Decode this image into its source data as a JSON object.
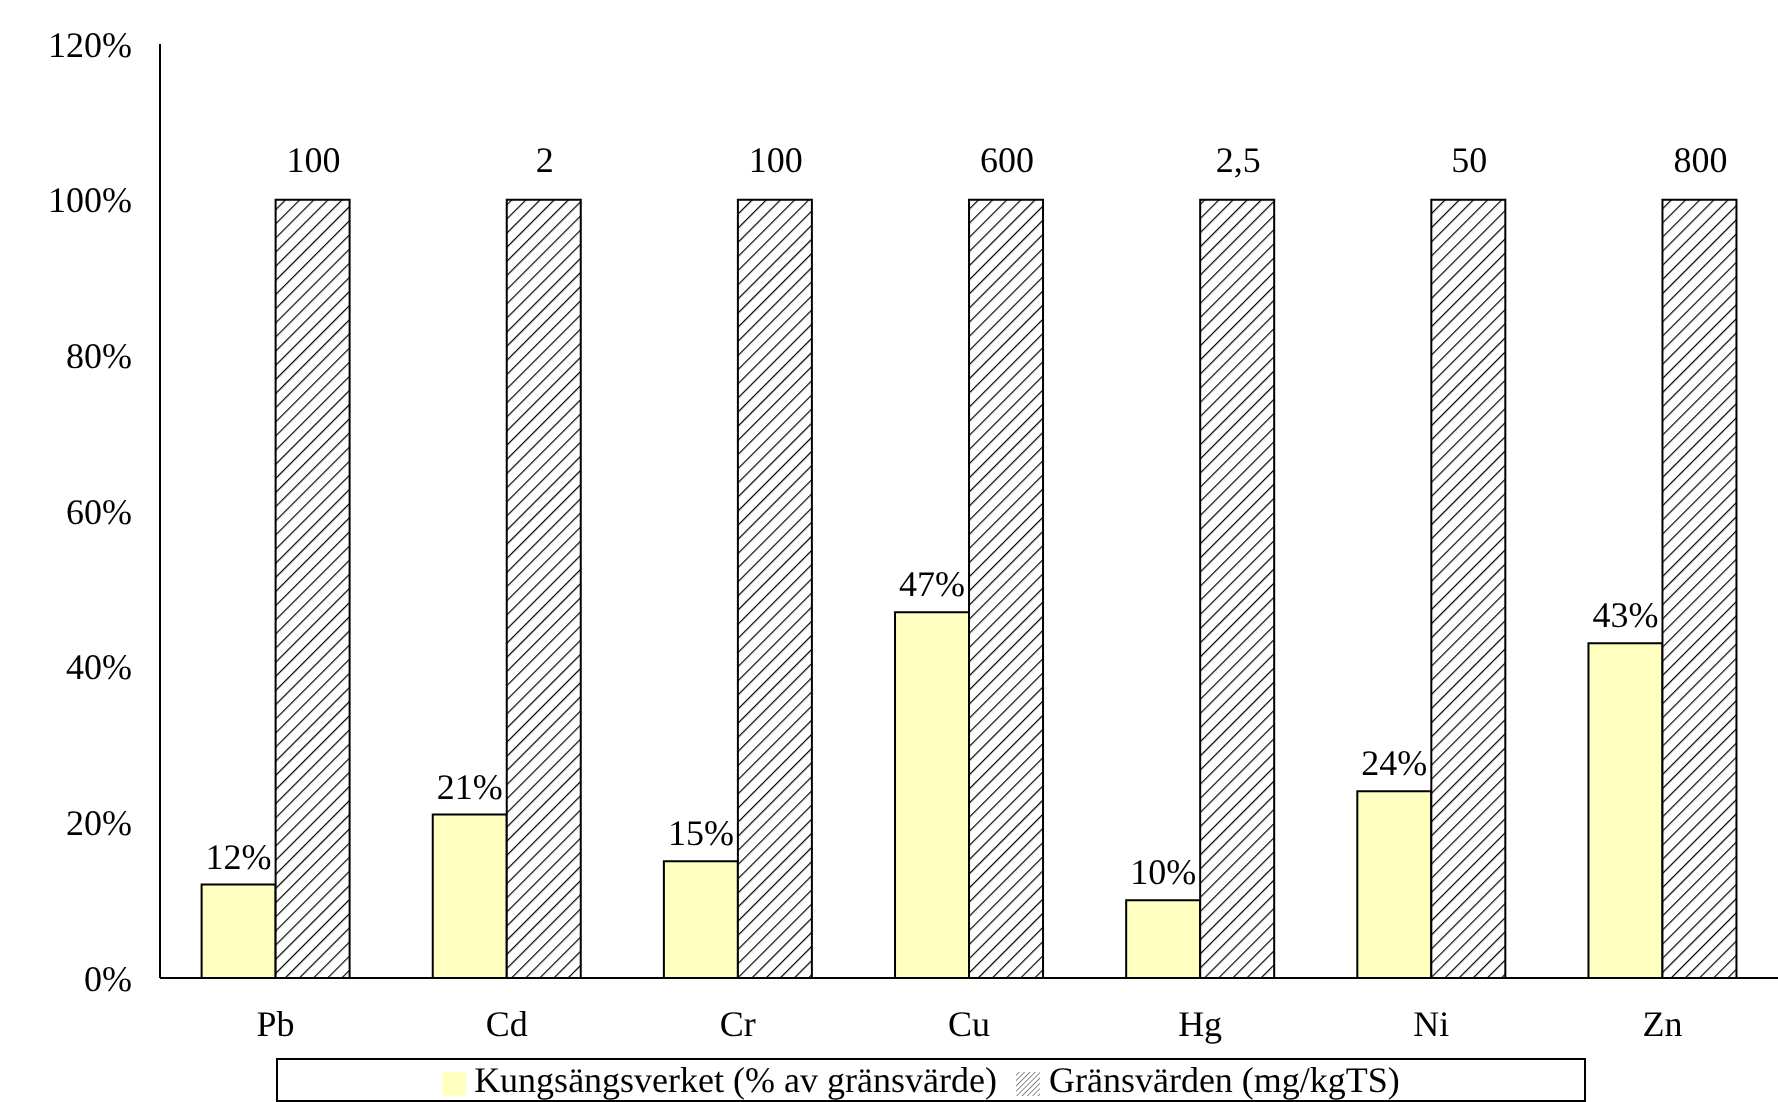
{
  "chart_data": {
    "type": "bar",
    "categories": [
      "Pb",
      "Cd",
      "Cr",
      "Cu",
      "Hg",
      "Ni",
      "Zn"
    ],
    "series": [
      {
        "name": "Kungsängsverket (% av gränsvärde)",
        "color": "#ffffc0",
        "values": [
          12,
          21,
          15,
          47,
          10,
          24,
          43
        ],
        "value_labels": [
          "12%",
          "21%",
          "15%",
          "47%",
          "10%",
          "24%",
          "43%"
        ]
      },
      {
        "name": "Gränsvärden (mg/kgTS)",
        "color": "#000000",
        "values": [
          100,
          100,
          100,
          100,
          100,
          100,
          100
        ]
      }
    ],
    "annotations": [
      {
        "text": "100",
        "x": "Pb",
        "y": 100
      },
      {
        "text": "2",
        "x": "Cd",
        "y": 100
      },
      {
        "text": "100",
        "x": "Cr",
        "y": 100
      },
      {
        "text": "600",
        "x": "Cu",
        "y": 100
      },
      {
        "text": "2,5",
        "x": "Hg",
        "y": 100
      },
      {
        "text": "50",
        "x": "Ni",
        "y": 100
      },
      {
        "text": "800",
        "x": "Zn",
        "y": 100
      }
    ],
    "ylim": [
      0,
      120
    ],
    "yticks": [
      {
        "value": 0,
        "label": "0%"
      },
      {
        "value": 20,
        "label": "20%"
      },
      {
        "value": 40,
        "label": "40%"
      },
      {
        "value": 60,
        "label": "60%"
      },
      {
        "value": 80,
        "label": "80%"
      },
      {
        "value": 100,
        "label": "100%"
      },
      {
        "value": 120,
        "label": "120%"
      }
    ],
    "grid": false,
    "legend": "bottom"
  }
}
